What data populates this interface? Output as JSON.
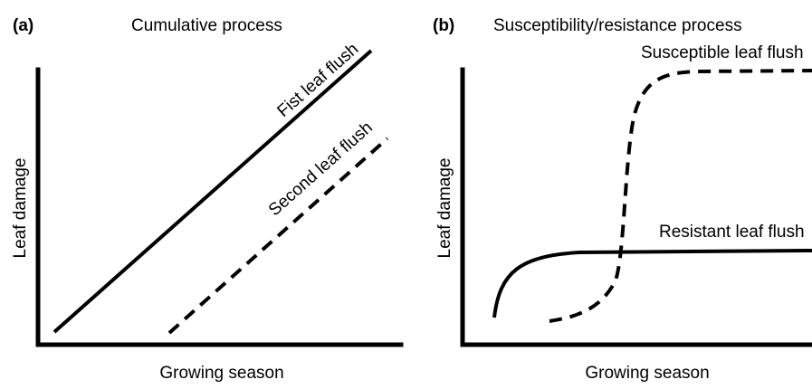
{
  "panels": [
    {
      "tag": "(a)",
      "title": "Cumulative process",
      "y_label": "Leaf damage",
      "x_label": "Growing season",
      "curves": [
        {
          "label": "Fist leaf flush"
        },
        {
          "label": "Second leaf flush"
        }
      ]
    },
    {
      "tag": "(b)",
      "title": "Susceptibility/resistance process",
      "y_label": "Leaf damage",
      "x_label": "Growing season",
      "curves": [
        {
          "label": "Susceptible leaf flush"
        },
        {
          "label": "Resistant leaf flush"
        }
      ]
    }
  ]
}
